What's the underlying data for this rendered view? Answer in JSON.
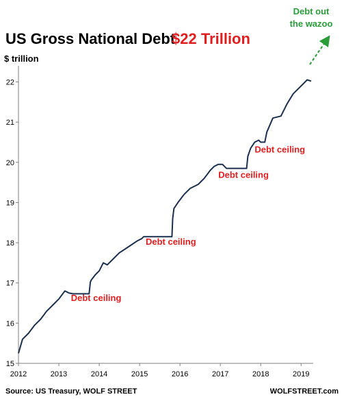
{
  "colors": {
    "line": "#1b2f4e",
    "annotation_red": "#e02020",
    "annotation_green": "#2a9d3a",
    "axis": "#7f7f7f",
    "text": "#000000"
  },
  "chart_data": {
    "type": "line",
    "title": "US Gross National Debt",
    "title_highlight": "$22 Trillion",
    "ylabel": "$ trillion",
    "xlabel": "",
    "ylim": [
      15,
      22.4
    ],
    "xlim": [
      2012,
      2019.3
    ],
    "yticks": [
      15,
      16,
      17,
      18,
      19,
      20,
      21,
      22
    ],
    "xticks": [
      2012,
      2013,
      2014,
      2015,
      2016,
      2017,
      2018,
      2019
    ],
    "grid": false,
    "series": [
      {
        "x": [
          2012.0,
          2012.1,
          2012.25,
          2012.4,
          2012.55,
          2012.7,
          2012.85,
          2013.0,
          2013.15,
          2013.25,
          2013.35,
          2013.75,
          2013.78,
          2013.8,
          2013.9,
          2014.0,
          2014.1,
          2014.2,
          2014.35,
          2014.5,
          2014.65,
          2014.8,
          2014.95,
          2015.05,
          2015.1,
          2015.8,
          2015.82,
          2015.85,
          2015.95,
          2016.1,
          2016.25,
          2016.45,
          2016.6,
          2016.75,
          2016.85,
          2016.95,
          2017.05,
          2017.15,
          2017.65,
          2017.68,
          2017.75,
          2017.85,
          2017.95,
          2018.0,
          2018.1,
          2018.15,
          2018.3,
          2018.5,
          2018.65,
          2018.8,
          2018.95,
          2019.05,
          2019.15,
          2019.25
        ],
        "y": [
          15.25,
          15.6,
          15.75,
          15.95,
          16.1,
          16.3,
          16.45,
          16.6,
          16.8,
          16.75,
          16.73,
          16.73,
          17.02,
          17.07,
          17.2,
          17.3,
          17.5,
          17.45,
          17.6,
          17.75,
          17.85,
          17.95,
          18.05,
          18.1,
          18.15,
          18.15,
          18.6,
          18.85,
          19.0,
          19.2,
          19.35,
          19.45,
          19.6,
          19.8,
          19.9,
          19.95,
          19.95,
          19.85,
          19.85,
          20.15,
          20.35,
          20.5,
          20.55,
          20.5,
          20.5,
          20.75,
          21.1,
          21.15,
          21.45,
          21.7,
          21.85,
          21.95,
          22.05,
          22.02
        ]
      }
    ],
    "annotations": [
      {
        "text": "Debt ceiling",
        "x": 2013.3,
        "y": 16.55
      },
      {
        "text": "Debt ceiling",
        "x": 2015.15,
        "y": 17.95
      },
      {
        "text": "Debt ceiling",
        "x": 2016.95,
        "y": 19.61
      },
      {
        "text": "Debt ceiling",
        "x": 2017.85,
        "y": 20.24
      }
    ],
    "arrow_annotation": {
      "lines": [
        "Debt out",
        "the wazoo"
      ]
    }
  },
  "footer": {
    "source": "Source: US Treasury, WOLF STREET",
    "brand": "WOLFSTREET.com"
  }
}
